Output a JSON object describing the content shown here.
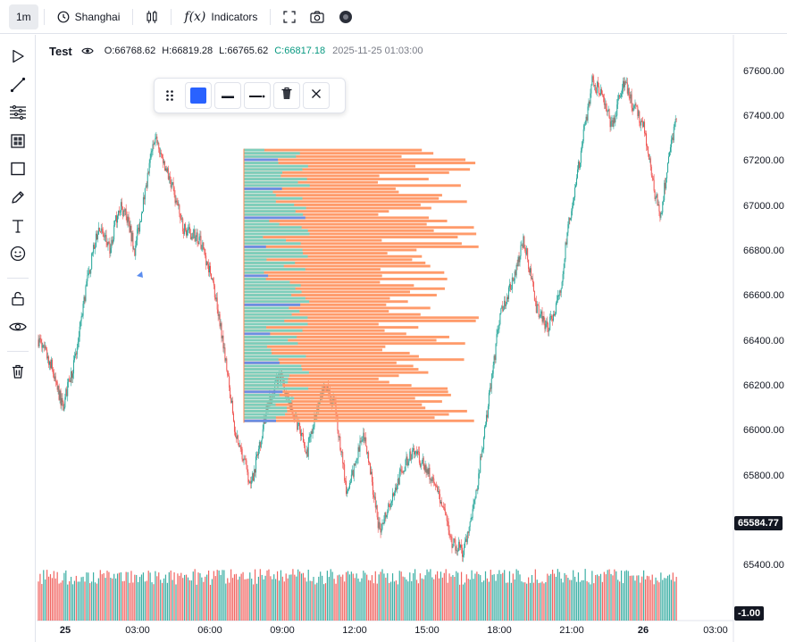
{
  "toolbar": {
    "interval": "1m",
    "timezone": "Shanghai",
    "indicators_label": "Indicators",
    "indicators_glyph": "f(x)"
  },
  "legend": {
    "symbol": "Test",
    "open": "O:66768.62",
    "high": "H:66819.28",
    "low": "L:66765.62",
    "close": "C:66817.18",
    "timestamp": "2025-11-25 01:03:00"
  },
  "price_axis": {
    "labels": [
      "67600.00",
      "67400.00",
      "67200.00",
      "67000.00",
      "66800.00",
      "66600.00",
      "66400.00",
      "66200.00",
      "66000.00",
      "65800.00",
      "65400.00"
    ],
    "last_price_tag": "65584.77",
    "volume_tag": "-1.00"
  },
  "time_axis": {
    "labels": [
      "25",
      "03:00",
      "06:00",
      "09:00",
      "12:00",
      "15:00",
      "18:00",
      "21:00",
      "26",
      "03:00"
    ]
  },
  "drawing_toolbar": {
    "color": "#2962ff"
  },
  "colors": {
    "up": "#26a69a",
    "down": "#ef5350",
    "profile_down": "#ff9b6b",
    "profile_up": "#6fd4c4",
    "profile_blue": "#5b8def",
    "close_text": "#089981",
    "axis_text": "#131722"
  },
  "chart_data": {
    "type": "candlestick",
    "x_axis": [
      "25",
      "03:00",
      "06:00",
      "09:00",
      "12:00",
      "15:00",
      "18:00",
      "21:00",
      "26",
      "03:00"
    ],
    "ylim": [
      65300,
      67700
    ],
    "waypoints": [
      {
        "t": "25 00:00",
        "price": 66400
      },
      {
        "t": "25 00:30",
        "price": 66300
      },
      {
        "t": "25 01:00",
        "price": 66100
      },
      {
        "t": "25 01:30",
        "price": 66300
      },
      {
        "t": "25 02:00",
        "price": 66650
      },
      {
        "t": "25 02:30",
        "price": 66900
      },
      {
        "t": "25 03:00",
        "price": 66800
      },
      {
        "t": "25 03:20",
        "price": 67000
      },
      {
        "t": "25 03:40",
        "price": 66950
      },
      {
        "t": "25 04:00",
        "price": 66800
      },
      {
        "t": "25 04:30",
        "price": 67100
      },
      {
        "t": "25 04:50",
        "price": 67300
      },
      {
        "t": "25 05:30",
        "price": 67100
      },
      {
        "t": "25 06:00",
        "price": 66900
      },
      {
        "t": "25 06:40",
        "price": 66850
      },
      {
        "t": "25 07:10",
        "price": 66700
      },
      {
        "t": "25 07:40",
        "price": 66400
      },
      {
        "t": "25 08:10",
        "price": 66000
      },
      {
        "t": "25 08:50",
        "price": 65750
      },
      {
        "t": "25 09:30",
        "price": 66100
      },
      {
        "t": "25 10:00",
        "price": 66250
      },
      {
        "t": "25 10:40",
        "price": 66050
      },
      {
        "t": "25 11:10",
        "price": 65900
      },
      {
        "t": "25 11:50",
        "price": 66200
      },
      {
        "t": "25 12:20",
        "price": 66100
      },
      {
        "t": "25 12:50",
        "price": 65700
      },
      {
        "t": "25 13:30",
        "price": 66000
      },
      {
        "t": "25 14:10",
        "price": 65550
      },
      {
        "t": "25 14:50",
        "price": 65750
      },
      {
        "t": "25 15:30",
        "price": 65900
      },
      {
        "t": "25 16:00",
        "price": 65850
      },
      {
        "t": "25 16:40",
        "price": 65700
      },
      {
        "t": "25 17:10",
        "price": 65500
      },
      {
        "t": "25 17:40",
        "price": 65450
      },
      {
        "t": "25 18:10",
        "price": 65700
      },
      {
        "t": "25 18:40",
        "price": 66100
      },
      {
        "t": "25 19:10",
        "price": 66500
      },
      {
        "t": "25 19:50",
        "price": 66700
      },
      {
        "t": "25 20:10",
        "price": 66850
      },
      {
        "t": "25 20:40",
        "price": 66550
      },
      {
        "t": "25 21:10",
        "price": 66450
      },
      {
        "t": "25 21:40",
        "price": 66600
      },
      {
        "t": "25 22:00",
        "price": 66900
      },
      {
        "t": "25 22:20",
        "price": 67100
      },
      {
        "t": "25 23:00",
        "price": 67550
      },
      {
        "t": "25 23:20",
        "price": 67500
      },
      {
        "t": "25 23:50",
        "price": 67350
      },
      {
        "t": "26 00:20",
        "price": 67550
      },
      {
        "t": "26 00:40",
        "price": 67450
      },
      {
        "t": "26 01:10",
        "price": 67350
      },
      {
        "t": "26 01:30",
        "price": 67100
      },
      {
        "t": "26 01:50",
        "price": 66950
      },
      {
        "t": "26 02:10",
        "price": 67200
      },
      {
        "t": "26 02:30",
        "price": 67400
      }
    ],
    "volume_profile": {
      "price_range": [
        66030,
        67250
      ],
      "rows": 85
    }
  }
}
